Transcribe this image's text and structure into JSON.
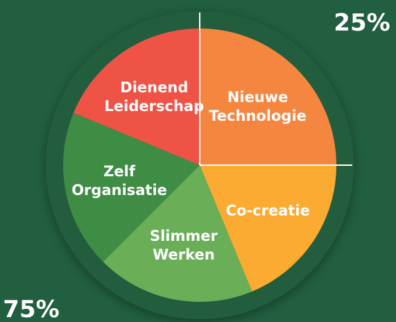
{
  "chart_data": {
    "type": "pie",
    "categories": [
      "Nieuwe Technologie",
      "Co-creatie",
      "Slimmer Werken",
      "Zelf Organisatie",
      "Dienend Leiderschap"
    ],
    "values": [
      25,
      18.75,
      18.75,
      18.75,
      18.75
    ],
    "colors": [
      "#f5863f",
      "#fbab32",
      "#6aaf57",
      "#3f8c44",
      "#ee5346"
    ],
    "annotations": [
      "25%",
      "75%"
    ]
  }
}
